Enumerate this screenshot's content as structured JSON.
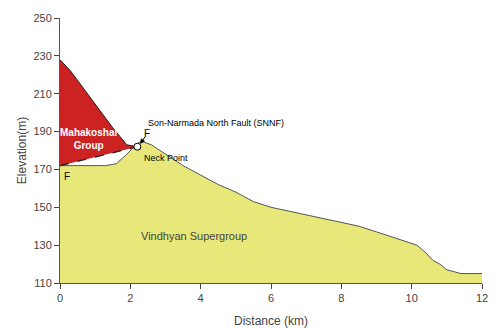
{
  "chart_data": {
    "type": "area",
    "title": "",
    "xlabel": "Distance (km)",
    "ylabel": "Elevation(m)",
    "xlim": [
      0,
      12
    ],
    "ylim": [
      110,
      250
    ],
    "xticks": [
      0,
      2,
      4,
      6,
      8,
      10,
      12
    ],
    "yticks": [
      110,
      130,
      150,
      170,
      190,
      210,
      230,
      250
    ],
    "grid": false,
    "series": [
      {
        "type": "area",
        "color": "#e8e87a",
        "line_color": "#555555",
        "x": [
          0,
          0,
          0.15,
          0.4,
          0.7,
          1.0,
          1.3,
          1.6,
          1.9,
          2.1,
          2.3,
          2.6,
          3.0,
          3.5,
          4.0,
          4.5,
          5.0,
          5.5,
          6.0,
          6.5,
          7.0,
          7.5,
          8.0,
          8.5,
          9.0,
          9.5,
          10.0,
          10.15,
          10.4,
          10.6,
          10.8,
          11.0,
          11.2,
          11.4,
          12,
          12
        ],
        "values": [
          110,
          172,
          172,
          172,
          172,
          172,
          172,
          173,
          178,
          182,
          185,
          183,
          178,
          172,
          167,
          162,
          158,
          153,
          150,
          148,
          146,
          144,
          142,
          140,
          137,
          134,
          131,
          130,
          126,
          122,
          120,
          117,
          116,
          115,
          115,
          110
        ]
      },
      {
        "type": "area",
        "color": "#cc2222",
        "line_color": "#222222",
        "x": [
          0,
          0,
          0.3,
          0.7,
          1.1,
          1.5,
          1.9,
          2.2,
          0
        ],
        "values": [
          172,
          228,
          222,
          212,
          202,
          192,
          183,
          182,
          172
        ]
      },
      {
        "type": "line",
        "color": "#222222",
        "line_style": "dashed",
        "x": [
          0,
          2.2
        ],
        "values": [
          172,
          182
        ]
      },
      {
        "type": "scatter",
        "marker": "circle",
        "color": "#ffffff",
        "x": [
          2.2
        ],
        "values": [
          182
        ]
      }
    ],
    "annotations": [
      {
        "text": "Son-Narmada North Fault (SNNF)",
        "x": 2.45,
        "y": 191,
        "color": "#000000",
        "arrow": {
          "x": 2.28,
          "y": 183.5,
          "from_x": 2.45,
          "from_y": 188
        }
      },
      {
        "text": "Mahakoshal\nGroup",
        "x": 0.8,
        "y": 186,
        "color": "#ffffff"
      },
      {
        "text": "Vindhyan Supergroup",
        "x": 3.8,
        "y": 135,
        "color": "#444444"
      },
      {
        "text": "Neck Point",
        "x": 2.32,
        "y": 180,
        "color": "#000000"
      },
      {
        "text": "F",
        "x": 0.05,
        "y": 170,
        "color": "#000000"
      },
      {
        "text": "F",
        "x": 2.32,
        "y": 185,
        "color": "#000000"
      }
    ]
  }
}
